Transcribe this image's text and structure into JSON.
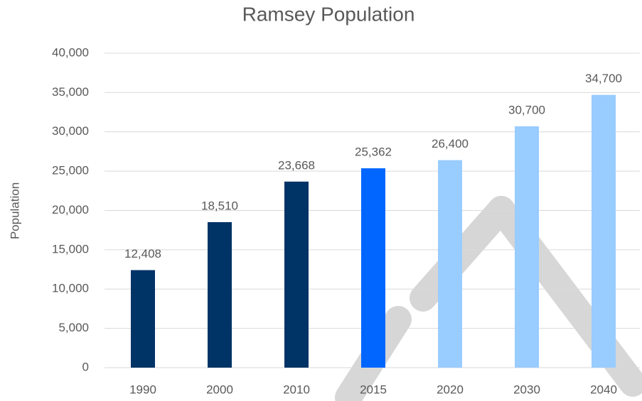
{
  "chart_data": {
    "type": "bar",
    "title": "Ramsey Population",
    "y_label": "Population",
    "categories": [
      "1990",
      "2000",
      "2010",
      "2015",
      "2020",
      "2030",
      "2040"
    ],
    "values": [
      12408,
      18510,
      23668,
      25362,
      26400,
      30700,
      34700
    ],
    "value_labels": [
      "12,408",
      "18,510",
      "23,668",
      "25,362",
      "26,400",
      "30,700",
      "34,700"
    ],
    "colors": [
      "#003366",
      "#003366",
      "#003366",
      "#0066ff",
      "#99ccff",
      "#99ccff",
      "#99ccff"
    ],
    "ylim": [
      0,
      40000
    ],
    "yticks": [
      0,
      {
        "value": 5000,
        "label": "5,000"
      },
      {
        "value": 10000,
        "label": "10,000"
      },
      {
        "value": 15000,
        "label": "15,000"
      },
      {
        "value": 20000,
        "label": "20,000"
      },
      {
        "value": 25000,
        "label": "25,000"
      },
      {
        "value": 30000,
        "label": "30,000"
      },
      {
        "value": 35000,
        "label": "35,000"
      },
      {
        "value": 40000,
        "label": "40,000"
      }
    ],
    "grid": true
  }
}
